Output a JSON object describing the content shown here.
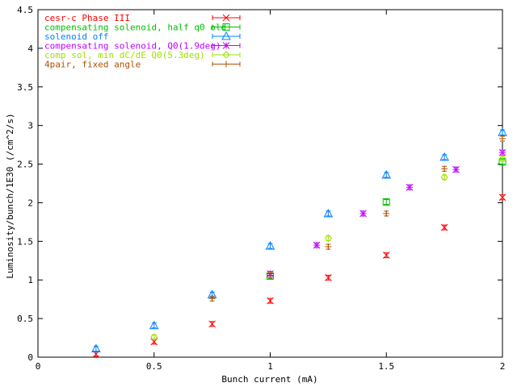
{
  "chart_data": {
    "type": "scatter",
    "title": "",
    "xlabel": "Bunch current (mA)",
    "ylabel": "Luminosity/bunch/1E30 (/cm^2/s)",
    "xlim": [
      0,
      2
    ],
    "ylim": [
      0,
      4.5
    ],
    "x_ticks": [
      "0",
      "0.5",
      "1",
      "1.5",
      "2"
    ],
    "y_ticks": [
      "0",
      "0.5",
      "1",
      "1.5",
      "2",
      "2.5",
      "3",
      "3.5",
      "4",
      "4.5"
    ],
    "grid": false,
    "legend_position": "top-left",
    "series": [
      {
        "name": "cesr-c Phase III",
        "color": "#ff0000",
        "marker": "x-icon",
        "points": [
          [
            0.25,
            0.04
          ],
          [
            0.5,
            0.2
          ],
          [
            0.75,
            0.43
          ],
          [
            1.0,
            0.73
          ],
          [
            1.25,
            1.03
          ],
          [
            1.5,
            1.32
          ],
          [
            1.75,
            1.68
          ],
          [
            2.0,
            2.07
          ]
        ]
      },
      {
        "name": "compensating solenoid, half q0 old",
        "color": "#00c000",
        "marker": "square-icon",
        "points": [
          [
            1.0,
            1.05
          ],
          [
            1.5,
            2.01
          ],
          [
            2.0,
            2.53
          ]
        ]
      },
      {
        "name": "solenoid off",
        "color": "#0080ff",
        "marker": "triangle-icon",
        "points": [
          [
            0.25,
            0.11
          ],
          [
            0.5,
            0.41
          ],
          [
            0.75,
            0.81
          ],
          [
            1.0,
            1.44
          ],
          [
            1.25,
            1.86
          ],
          [
            1.5,
            2.36
          ],
          [
            1.75,
            2.59
          ],
          [
            2.0,
            2.91
          ]
        ]
      },
      {
        "name": "compensating solenoid, Q0(1.9deg)",
        "color": "#c000ff",
        "marker": "asterisk-icon",
        "points": [
          [
            1.0,
            1.08
          ],
          [
            1.2,
            1.45
          ],
          [
            1.4,
            1.86
          ],
          [
            1.6,
            2.2
          ],
          [
            1.8,
            2.43
          ],
          [
            2.0,
            2.65
          ]
        ]
      },
      {
        "name": "comp sol, min dC/dE Q0(5.3deg)",
        "color": "#a0e000",
        "marker": "diamond-icon",
        "points": [
          [
            0.5,
            0.26
          ],
          [
            1.25,
            1.54
          ],
          [
            1.75,
            2.33
          ],
          [
            2.0,
            2.57
          ]
        ]
      },
      {
        "name": "4pair, fixed angle",
        "color": "#b05000",
        "marker": "plus-icon",
        "points": [
          [
            0.75,
            0.76
          ],
          [
            1.0,
            1.06
          ],
          [
            1.25,
            1.43
          ],
          [
            1.5,
            1.86
          ],
          [
            1.75,
            2.44
          ],
          [
            2.0,
            2.83
          ]
        ]
      }
    ]
  }
}
